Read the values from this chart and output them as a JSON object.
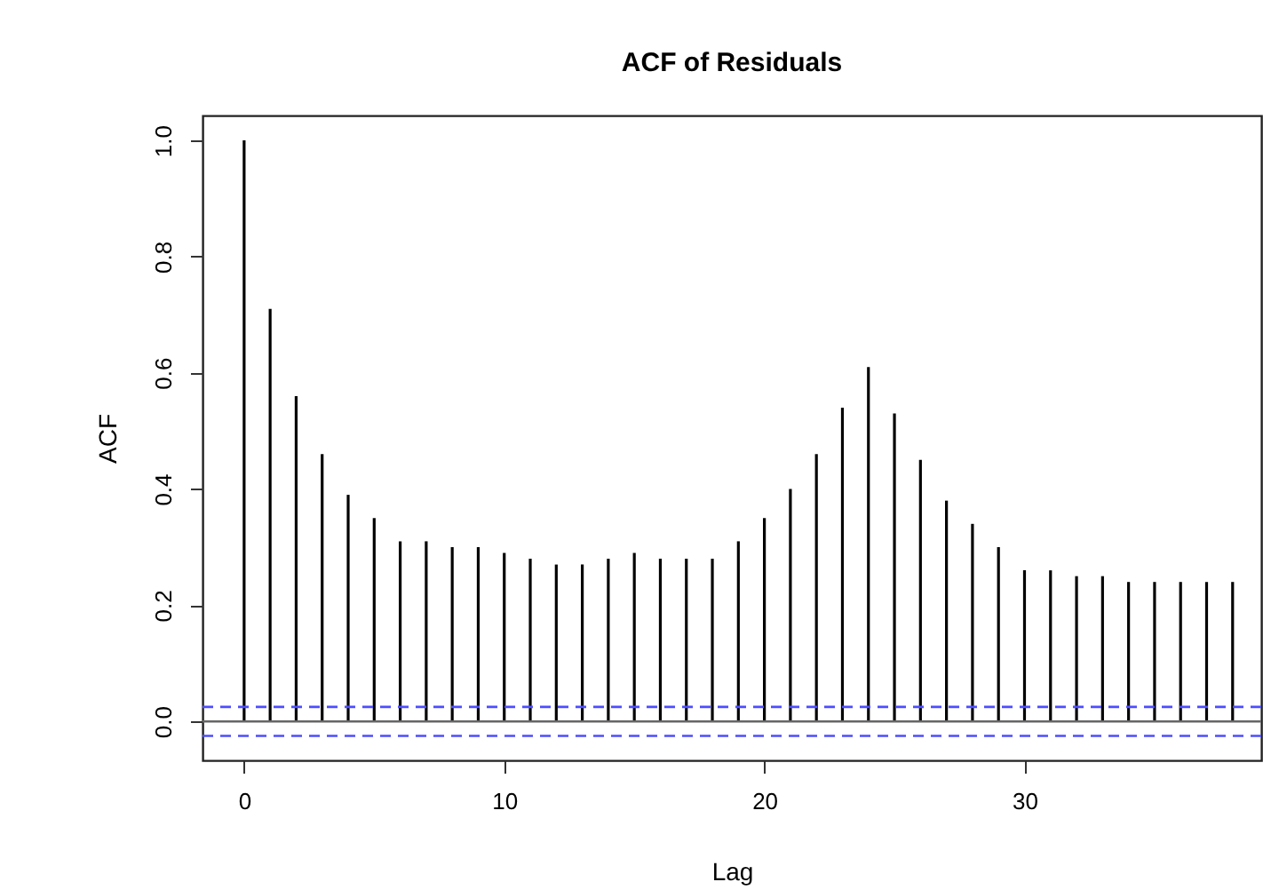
{
  "chart_data": {
    "type": "bar",
    "title": "ACF of Residuals",
    "xlabel": "Lag",
    "ylabel": "ACF",
    "x": [
      0,
      1,
      2,
      3,
      4,
      5,
      6,
      7,
      8,
      9,
      10,
      11,
      12,
      13,
      14,
      15,
      16,
      17,
      18,
      19,
      20,
      21,
      22,
      23,
      24,
      25,
      26,
      27,
      28,
      29,
      30,
      31,
      32,
      33,
      34,
      35,
      36,
      37,
      38
    ],
    "series": [
      {
        "color": "#000000",
        "values": [
          1.0,
          0.71,
          0.56,
          0.46,
          0.39,
          0.35,
          0.31,
          0.31,
          0.3,
          0.3,
          0.29,
          0.28,
          0.27,
          0.27,
          0.28,
          0.29,
          0.28,
          0.28,
          0.28,
          0.31,
          0.35,
          0.4,
          0.46,
          0.54,
          0.61,
          0.53,
          0.45,
          0.38,
          0.34,
          0.3,
          0.26,
          0.26,
          0.25,
          0.25,
          0.24,
          0.24,
          0.24,
          0.24,
          0.24
        ]
      }
    ],
    "xlim": [
      -1.6,
      39.1
    ],
    "xticks": [
      0,
      10,
      20,
      30
    ],
    "ylim": [
      -0.067,
      1.043
    ],
    "yticks": [
      {
        "value": 0,
        "label": "0.0"
      },
      0.2,
      0.4,
      0.6,
      0.8,
      {
        "value": 1,
        "label": "1.0"
      }
    ],
    "ref_lines": [
      {
        "axis": "y",
        "value": 0,
        "color": "#666666",
        "line_style": "solid"
      },
      {
        "axis": "y",
        "value": 0.025,
        "color": "#4d4dff",
        "line_style": "dashed"
      },
      {
        "axis": "y",
        "value": -0.025,
        "color": "#4d4dff",
        "line_style": "dashed"
      }
    ],
    "grid": false
  }
}
